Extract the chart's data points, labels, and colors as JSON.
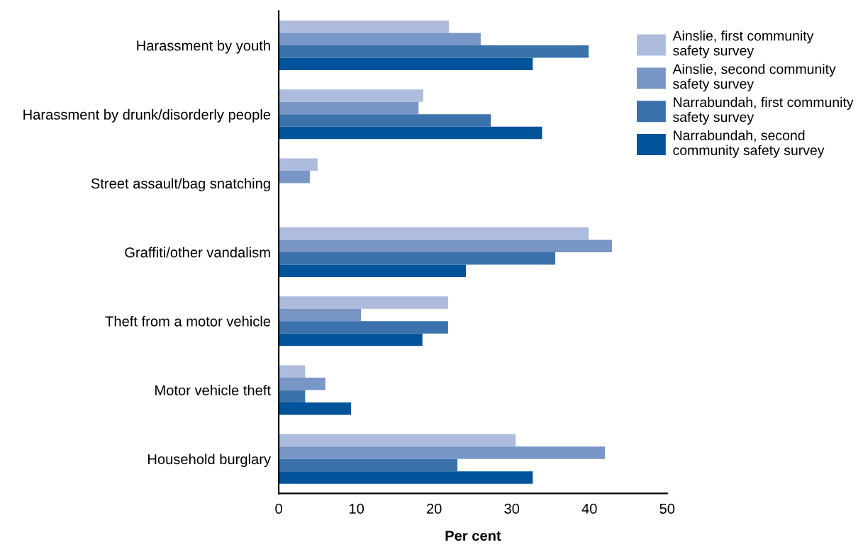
{
  "chart_data": {
    "type": "bar",
    "orientation": "horizontal",
    "xlabel": "Per cent",
    "categories": [
      "Harassment by youth",
      "Harassment by drunk/disorderly people",
      "Street assault/bag snatching",
      "Graffiti/other vandalism",
      "Theft from a motor vehicle",
      "Motor vehicle theft",
      "Household burglary"
    ],
    "series": [
      {
        "name": "Ainslie, first community\nsafety survey",
        "color": "#adbcdc",
        "values": [
          21.9,
          18.6,
          5.0,
          39.9,
          21.8,
          3.4,
          30.5
        ]
      },
      {
        "name": "Ainslie, second community\nsafety survey",
        "color": "#7896c6",
        "values": [
          26.0,
          18.0,
          4.0,
          42.9,
          10.6,
          6.0,
          42.0
        ]
      },
      {
        "name": "Narrabundah, first community\nsafety survey",
        "color": "#3b72ab",
        "values": [
          39.9,
          27.3,
          null,
          35.6,
          21.8,
          3.4,
          23.0
        ]
      },
      {
        "name": "Narrabundah, second\ncommunity safety survey",
        "color": "#02549a",
        "values": [
          32.7,
          33.9,
          null,
          24.1,
          18.5,
          9.3,
          32.7
        ]
      }
    ],
    "xlim": [
      0,
      50
    ],
    "xticks": [
      0,
      10,
      20,
      30,
      40,
      50
    ],
    "grid": false,
    "legend": "top right"
  }
}
